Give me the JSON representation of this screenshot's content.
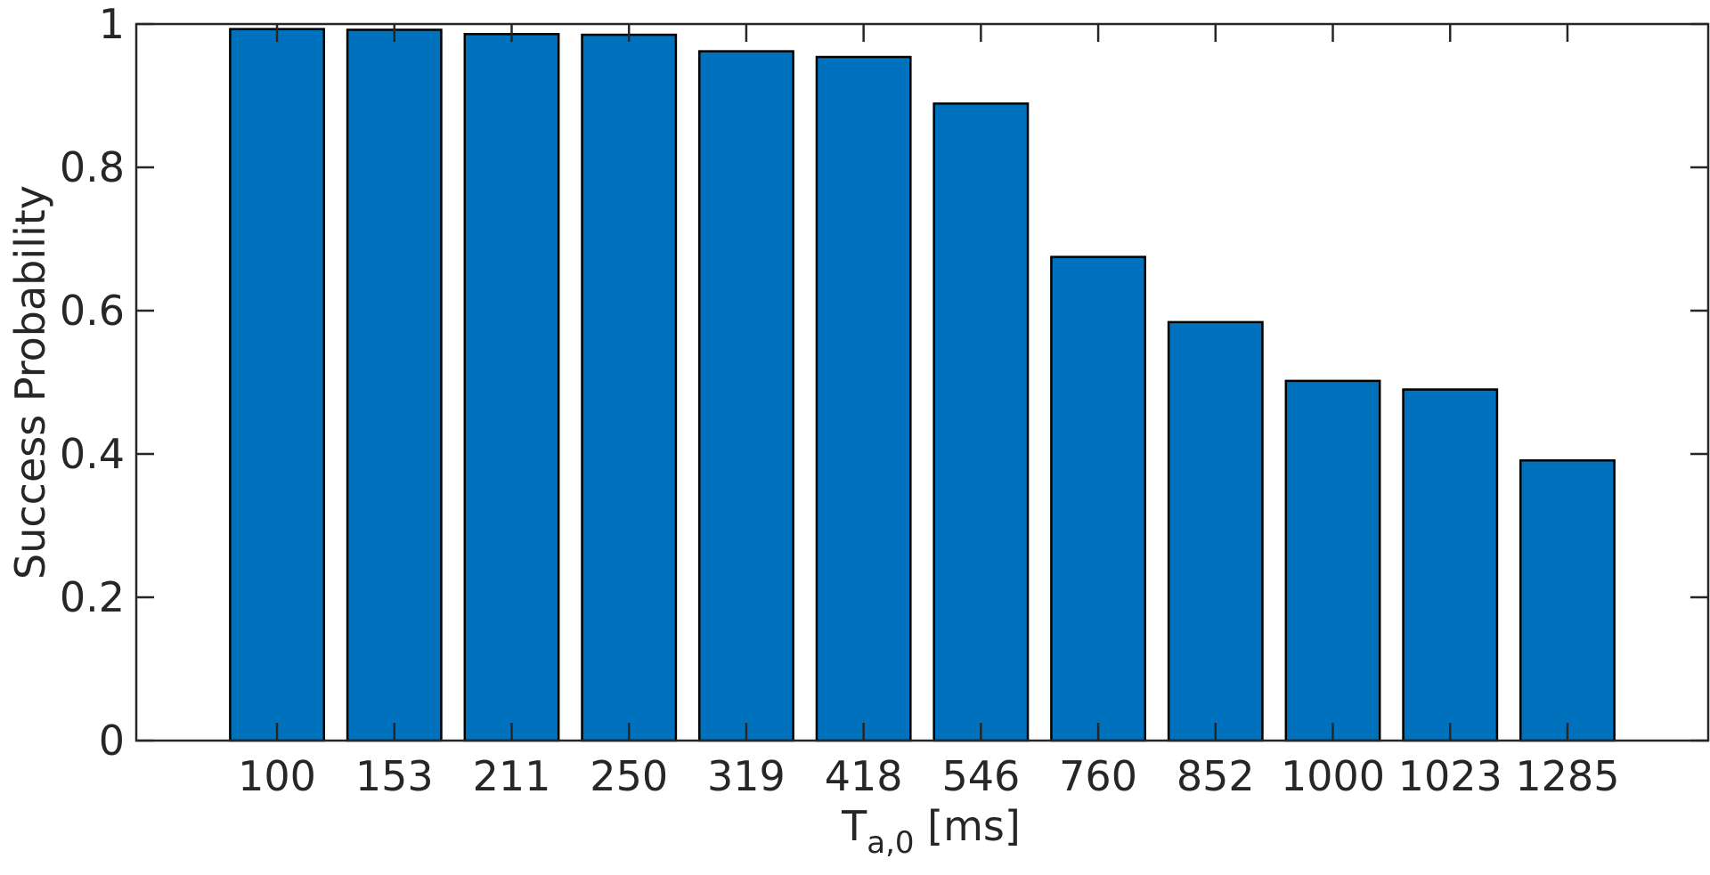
{
  "chart_data": {
    "type": "bar",
    "categories": [
      "100",
      "153",
      "211",
      "250",
      "319",
      "418",
      "546",
      "760",
      "852",
      "1000",
      "1023",
      "1285"
    ],
    "values": [
      0.993,
      0.992,
      0.986,
      0.985,
      0.962,
      0.954,
      0.889,
      0.675,
      0.584,
      0.502,
      0.49,
      0.391
    ],
    "xlabel": {
      "main": "T",
      "subscript": "a,0",
      "unit": " [ms]"
    },
    "ylabel": "Success Probability",
    "ylim": [
      0,
      1
    ],
    "yticks": [
      "0",
      "0.2",
      "0.4",
      "0.6",
      "0.8",
      "1"
    ],
    "grid": false,
    "colors": {
      "bar": "#0072bd",
      "edge": "#000000",
      "axes": "#262626"
    }
  }
}
